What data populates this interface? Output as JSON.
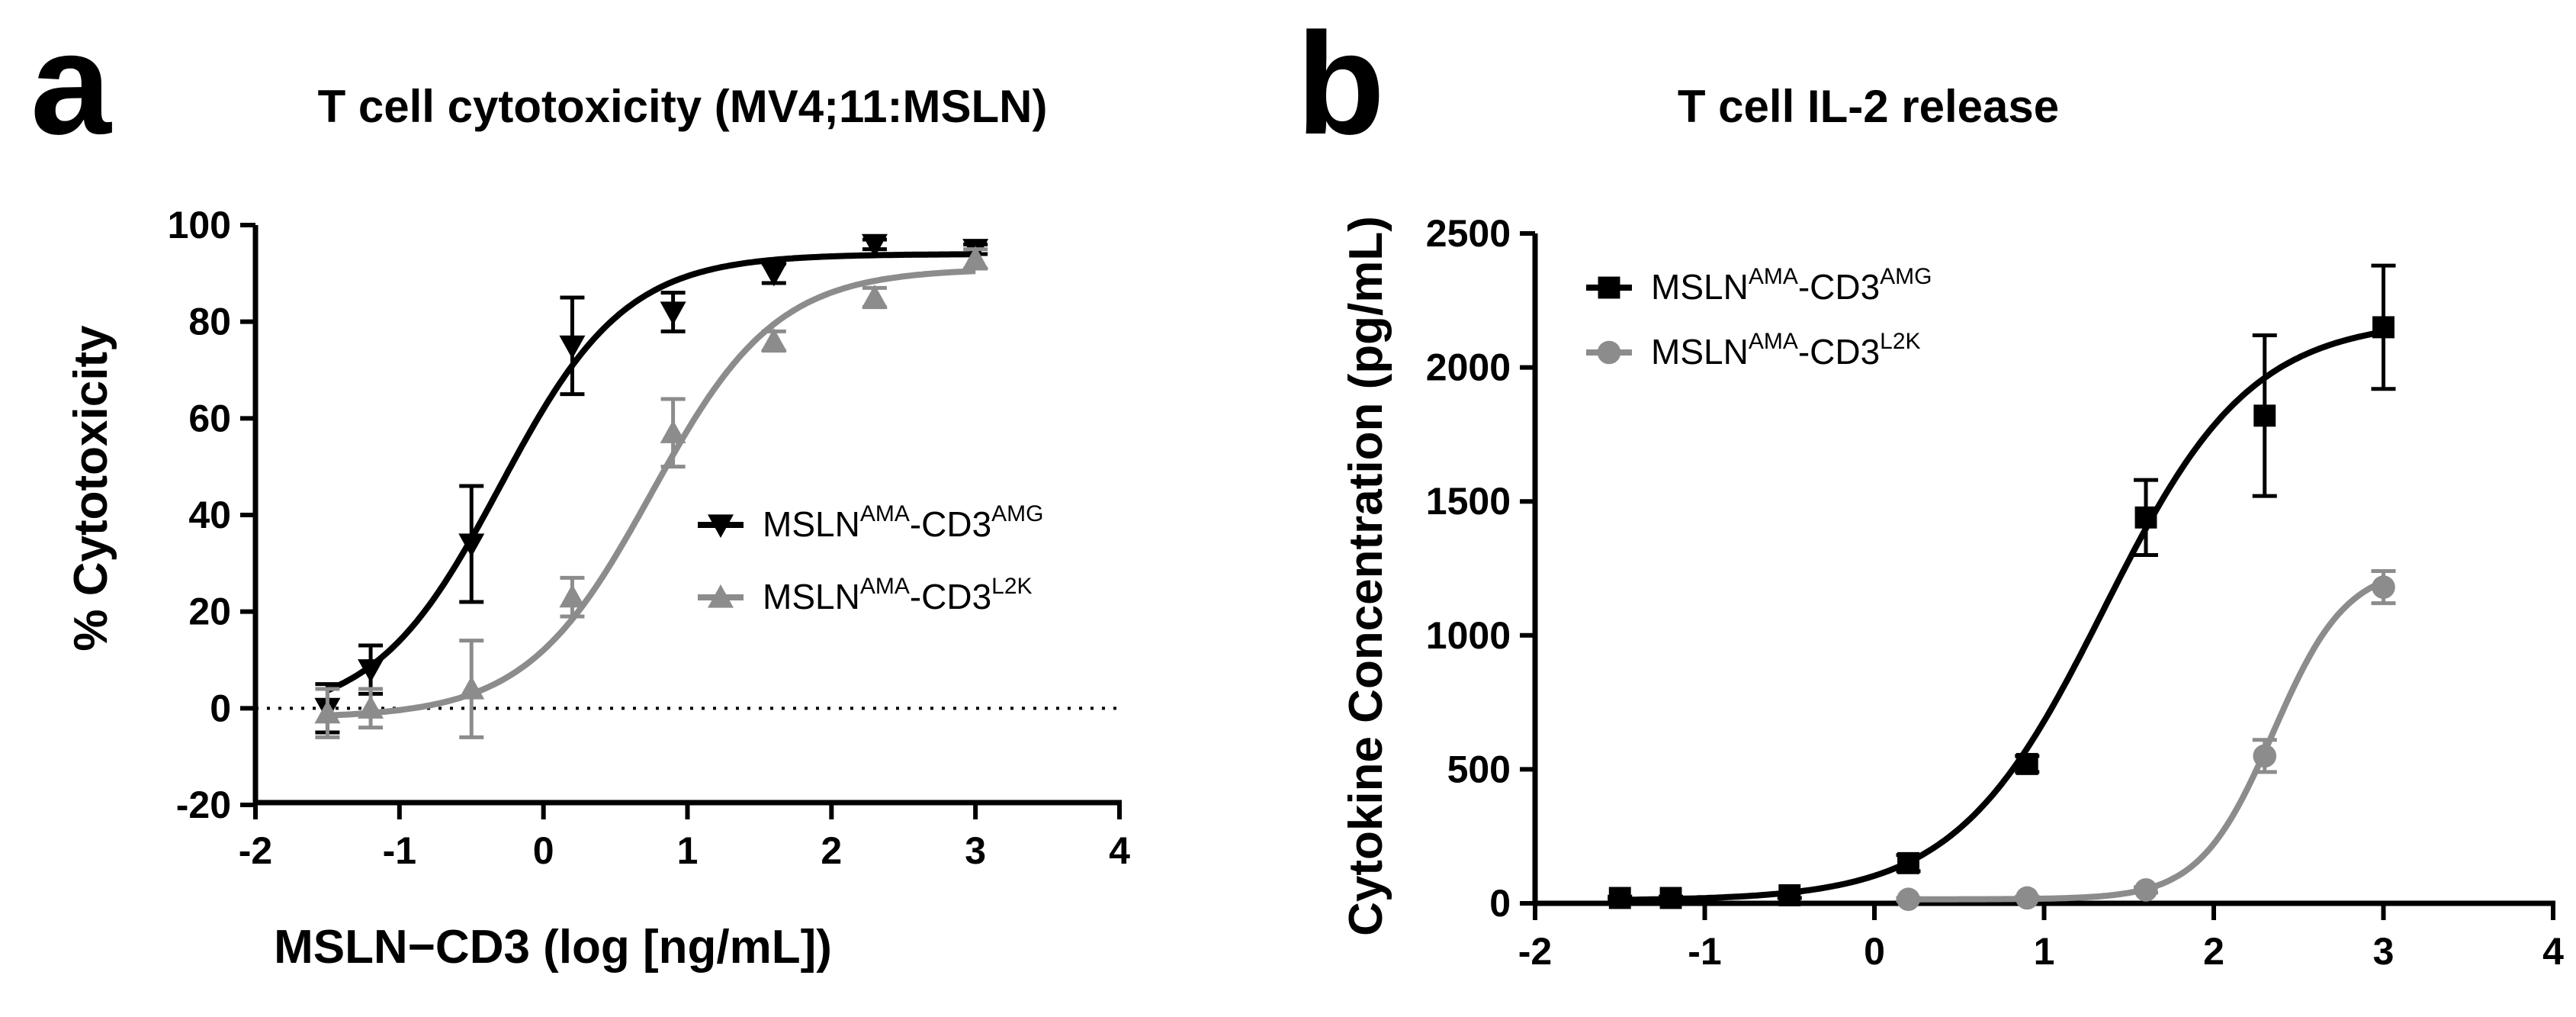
{
  "panel_a": {
    "letter": "a"
  },
  "panel_b": {
    "letter": "b"
  },
  "chart_data": [
    {
      "type": "scatter",
      "id": "a",
      "title": "T cell cytotoxicity (MV4;11:MSLN)",
      "xlabel": "MSLN−CD3 (log [ng/mL])",
      "ylabel": "% Cytotoxicity",
      "xlim": [
        -2,
        4
      ],
      "ylim": [
        -20,
        100
      ],
      "xticks": [
        -2,
        -1,
        0,
        1,
        2,
        3,
        4
      ],
      "yticks": [
        -20,
        0,
        20,
        40,
        60,
        80,
        100
      ],
      "xtick_labels": [
        "-2",
        "-1",
        "0",
        "1",
        "2",
        "3",
        "4"
      ],
      "ytick_labels": [
        "-20",
        "0",
        "20",
        "40",
        "60",
        "80",
        "100"
      ],
      "reference_line": {
        "y": 0,
        "style": "dotted"
      },
      "legend_position": "center-right",
      "series": [
        {
          "name": "MSLN-CD3",
          "label_main": "MSLN",
          "label_sup1": "AMA",
          "label_mid": "-CD3",
          "label_sup2": "AMG",
          "marker": "triangle-down",
          "color": "#000000",
          "x": [
            -1.5,
            -1.2,
            -0.5,
            0.2,
            0.9,
            1.6,
            2.3,
            3.0
          ],
          "y": [
            0,
            8,
            34,
            75,
            82,
            90,
            96,
            95
          ],
          "err": [
            5,
            5,
            12,
            10,
            4,
            2,
            1,
            1
          ],
          "fit": {
            "bottom": -2,
            "top": 94,
            "logEC50": -0.3,
            "hill": 1.0
          }
        },
        {
          "name": "MSLN-CD3",
          "label_main": "MSLN",
          "label_sup1": "AMA",
          "label_mid": "-CD3",
          "label_sup2": "L2K",
          "marker": "triangle-up",
          "color": "#8c8c8c",
          "x": [
            -1.5,
            -1.2,
            -0.5,
            0.2,
            0.9,
            1.6,
            2.3,
            3.0
          ],
          "y": [
            -1,
            0,
            4,
            23,
            57,
            76,
            85,
            93
          ],
          "err": [
            5,
            4,
            10,
            4,
            7,
            2,
            2,
            2
          ],
          "fit": {
            "bottom": -2,
            "top": 91,
            "logEC50": 0.75,
            "hill": 1.0
          }
        }
      ]
    },
    {
      "type": "scatter",
      "id": "b",
      "title": "T cell IL-2 release",
      "xlabel": "",
      "ylabel": "Cytokine Concentration (pg/mL)",
      "xlim": [
        -2,
        4
      ],
      "ylim": [
        0,
        2500
      ],
      "xticks": [
        -2,
        -1,
        0,
        1,
        2,
        3,
        4
      ],
      "yticks": [
        0,
        500,
        1000,
        1500,
        2000,
        2500
      ],
      "xtick_labels": [
        "-2",
        "-1",
        "0",
        "1",
        "2",
        "3",
        "4"
      ],
      "ytick_labels": [
        "0",
        "500",
        "1000",
        "1500",
        "2000",
        "2500"
      ],
      "legend_position": "top-left",
      "series": [
        {
          "name": "MSLN-CD3",
          "label_main": "MSLN",
          "label_sup1": "AMA",
          "label_mid": "-CD3",
          "label_sup2": "AMG",
          "marker": "square",
          "color": "#000000",
          "x": [
            -1.5,
            -1.2,
            -0.5,
            0.2,
            0.9,
            1.6,
            2.3,
            3.0
          ],
          "y": [
            20,
            20,
            30,
            150,
            520,
            1440,
            1820,
            2150
          ],
          "err": [
            5,
            5,
            10,
            30,
            30,
            140,
            300,
            230
          ],
          "fit": {
            "bottom": 10,
            "top": 2180,
            "logEC50": 1.35,
            "hill": 1.0
          }
        },
        {
          "name": "MSLN-CD3",
          "label_main": "MSLN",
          "label_sup1": "AMA",
          "label_mid": "-CD3",
          "label_sup2": "L2K",
          "marker": "circle",
          "color": "#8c8c8c",
          "x": [
            0.2,
            0.9,
            1.6,
            2.3,
            3.0
          ],
          "y": [
            15,
            20,
            50,
            550,
            1180
          ],
          "err": [
            5,
            5,
            10,
            60,
            60
          ],
          "fit": {
            "bottom": 15,
            "top": 1260,
            "logEC50": 2.35,
            "hill": 2.0
          }
        }
      ]
    }
  ]
}
